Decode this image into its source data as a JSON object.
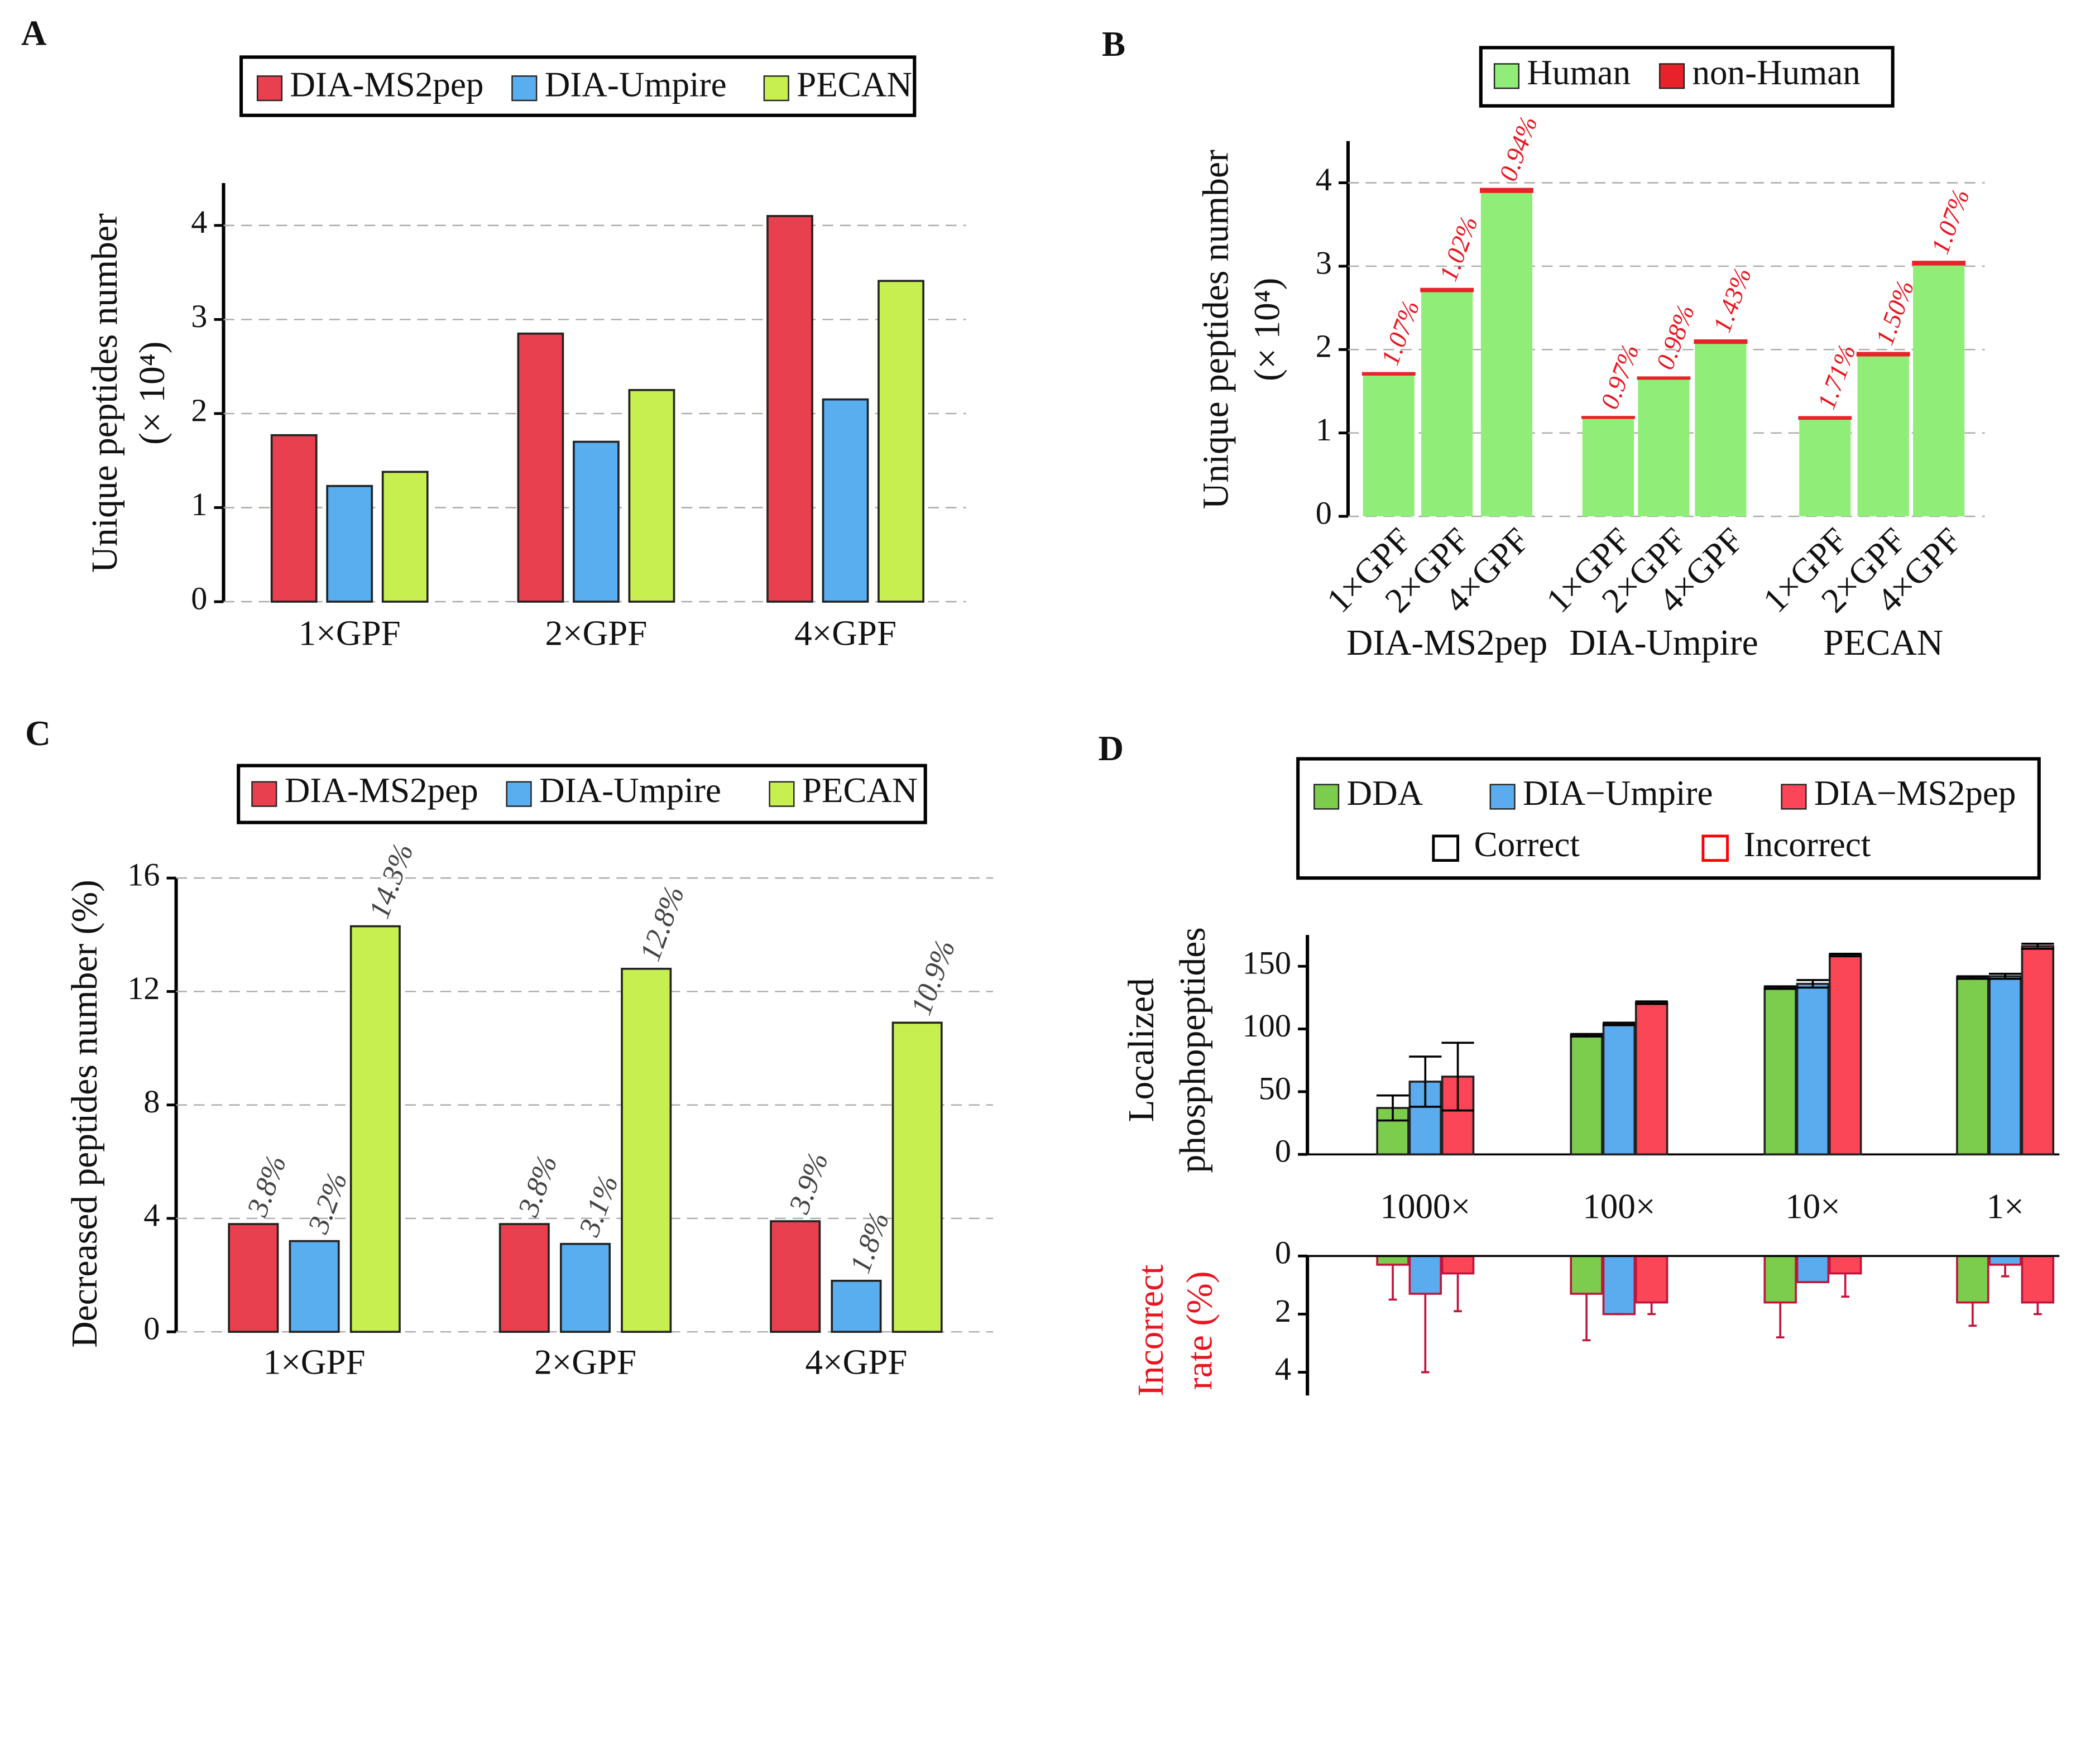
{
  "chart_data": [
    {
      "type": "bar",
      "panel_label": "A",
      "categories": [
        "1×GPF",
        "2×GPF",
        "4×GPF"
      ],
      "series": [
        {
          "name": "DIA-MS2pep",
          "color": "#e8404f",
          "values": [
            1.77,
            2.85,
            4.1
          ]
        },
        {
          "name": "DIA-Umpire",
          "color": "#59aef0",
          "values": [
            1.23,
            1.7,
            2.15
          ]
        },
        {
          "name": "PECAN",
          "color": "#c8ef50",
          "values": [
            1.38,
            2.25,
            3.41
          ]
        }
      ],
      "y_label": [
        "Unique peptides number",
        "(× 10⁴)"
      ],
      "ylim": [
        0,
        4.45
      ],
      "yticks": [
        0,
        1,
        2,
        3,
        4
      ],
      "grid": true
    },
    {
      "type": "stacked_bar",
      "panel_label": "B",
      "groups": [
        "DIA-MS2pep",
        "DIA-Umpire",
        "PECAN"
      ],
      "categories": [
        "1×GPF",
        "2×GPF",
        "4×GPF",
        "1×GPF",
        "2×GPF",
        "4×GPF",
        "1×GPF",
        "2×GPF",
        "4×GPF"
      ],
      "series": [
        {
          "name": "Human",
          "color": "#90ee78",
          "values": [
            1.7,
            2.7,
            3.89,
            1.18,
            1.65,
            2.08,
            1.17,
            1.93,
            3.02
          ]
        },
        {
          "name": "non-Human",
          "color": "#e8222a",
          "values": [
            0.018,
            0.028,
            0.037,
            0.012,
            0.016,
            0.03,
            0.02,
            0.029,
            0.033
          ]
        }
      ],
      "percent_labels": [
        "1.07%",
        "1.02%",
        "0.94%",
        "0.97%",
        "0.98%",
        "1.43%",
        "1.71%",
        "1.50%",
        "1.07%"
      ],
      "y_label": [
        "Unique peptides number",
        "(× 10⁴)"
      ],
      "ylim": [
        0,
        4.5
      ],
      "yticks": [
        0,
        1,
        2,
        3,
        4
      ],
      "grid": true
    },
    {
      "type": "bar",
      "panel_label": "C",
      "categories": [
        "1×GPF",
        "2×GPF",
        "4×GPF"
      ],
      "series": [
        {
          "name": "DIA-MS2pep",
          "color": "#e8404f",
          "values": [
            3.8,
            3.8,
            3.9
          ],
          "value_labels": [
            "3.8%",
            "3.8%",
            "3.9%"
          ]
        },
        {
          "name": "DIA-Umpire",
          "color": "#59aef0",
          "values": [
            3.2,
            3.1,
            1.8
          ],
          "value_labels": [
            "3.2%",
            "3.1%",
            "1.8%"
          ]
        },
        {
          "name": "PECAN",
          "color": "#c8ef50",
          "values": [
            14.3,
            12.8,
            10.9
          ],
          "value_labels": [
            "14.3%",
            "12.8%",
            "10.9%"
          ]
        }
      ],
      "y_label": [
        "Decreased peptides number (%)"
      ],
      "ylim": [
        0,
        16
      ],
      "yticks": [
        0,
        4,
        8,
        12,
        16
      ],
      "grid": true
    },
    {
      "type": "bar_error",
      "panel_label": "D",
      "categories": [
        "1000×",
        "100×",
        "10×",
        "1×"
      ],
      "series": [
        {
          "name": "DDA",
          "color": "#7ccc4e",
          "values": [
            37,
            95,
            133,
            141
          ],
          "errors": [
            10,
            1,
            1,
            1
          ],
          "incorrect": [
            0.3,
            1.3,
            1.6,
            1.6
          ],
          "incorrect_errors": [
            1.2,
            1.6,
            1.2,
            0.8
          ]
        },
        {
          "name": "DIA−Umpire",
          "color": "#5aacef",
          "values": [
            58,
            104,
            136,
            142
          ],
          "errors": [
            20,
            1,
            3,
            2
          ],
          "incorrect": [
            1.3,
            2,
            0.9,
            0.3
          ],
          "incorrect_errors": [
            2.7,
            0,
            0,
            0.4
          ]
        },
        {
          "name": "DIA−MS2pep",
          "color": "#fb4657",
          "values": [
            62,
            121,
            159,
            166
          ],
          "errors": [
            27,
            1,
            1,
            2
          ],
          "incorrect": [
            0.6,
            1.6,
            0.6,
            1.6
          ],
          "incorrect_errors": [
            1.3,
            0.4,
            0.8,
            0.4
          ]
        }
      ],
      "legend_extra": [
        {
          "name": "Correct",
          "color": "#000000"
        },
        {
          "name": "Incorrect",
          "color": "#ff0000"
        }
      ],
      "y_label": [
        "Localized",
        "phosphopeptides"
      ],
      "y2_label": [
        "Incorrect",
        "rate (%)"
      ],
      "ylim": [
        0,
        175
      ],
      "yticks": [
        0,
        50,
        100,
        150
      ],
      "y2lim": [
        0,
        4.8
      ],
      "y2ticks": [
        0,
        2,
        4
      ],
      "grid": false
    }
  ]
}
